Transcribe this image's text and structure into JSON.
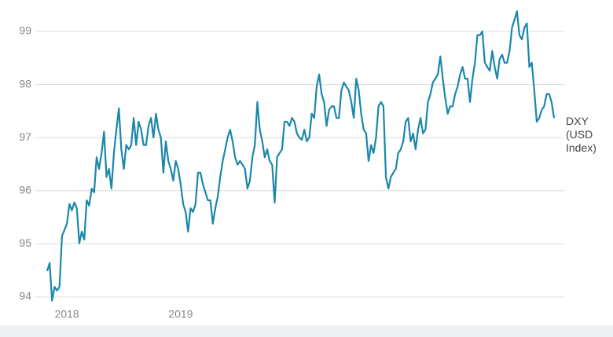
{
  "chart_data": {
    "type": "line",
    "categories": [
      null,
      null,
      null,
      null,
      null,
      null,
      null,
      null,
      "2018",
      null,
      null,
      null,
      null,
      null,
      null,
      null,
      null,
      null,
      null,
      null,
      null,
      null,
      null,
      null,
      null,
      null,
      null,
      null,
      null,
      null,
      null,
      null,
      null,
      null,
      null,
      null,
      null,
      null,
      null,
      null,
      null,
      null,
      null,
      null,
      null,
      null,
      null,
      null,
      null,
      null,
      null,
      null,
      null,
      null,
      "2019",
      null,
      null,
      null,
      null,
      null,
      null,
      null,
      null,
      null,
      null,
      null,
      null,
      null,
      null,
      null,
      null,
      null,
      null,
      null,
      null,
      null,
      null,
      null,
      null,
      null,
      null,
      null,
      null,
      null,
      null,
      null,
      null,
      null,
      null,
      null,
      null,
      null,
      null,
      null,
      null,
      null,
      null,
      null,
      null,
      null,
      null,
      null,
      null,
      null,
      null,
      null,
      null,
      null,
      null,
      null,
      null,
      null,
      null,
      null,
      null,
      null,
      null,
      null,
      null,
      null,
      null,
      null,
      null,
      null,
      null,
      null,
      null,
      null,
      null,
      null,
      null,
      null,
      null,
      null,
      null,
      null,
      null,
      null,
      null,
      null,
      null,
      null,
      null,
      null,
      null,
      null,
      null,
      null,
      null,
      null,
      null,
      null,
      null,
      null,
      null,
      null,
      null,
      null,
      null,
      null,
      null,
      null,
      null,
      null,
      null,
      null,
      null,
      null,
      null,
      null,
      null,
      null,
      null,
      null,
      null,
      null,
      null,
      null,
      null,
      null,
      null,
      null,
      null,
      null,
      null,
      null,
      null,
      null,
      null,
      null,
      null,
      null,
      null,
      null,
      null,
      null,
      null,
      null,
      null,
      null,
      null,
      null,
      null,
      null,
      null,
      null
    ],
    "series": [
      {
        "name": "DXY (USD Index)",
        "color": "#1a87ab",
        "values": [
          94.49,
          94.64,
          93.93,
          94.19,
          94.12,
          94.19,
          95.15,
          95.26,
          95.38,
          95.75,
          95.63,
          95.78,
          95.67,
          95.01,
          95.23,
          95.08,
          95.82,
          95.72,
          96.04,
          95.97,
          96.63,
          96.41,
          96.71,
          97.11,
          96.26,
          96.41,
          96.04,
          96.71,
          97.15,
          97.55,
          96.78,
          96.41,
          96.86,
          96.78,
          96.86,
          97.37,
          96.86,
          97.3,
          97.15,
          96.86,
          96.86,
          97.22,
          97.37,
          97.0,
          97.45,
          97.15,
          97.0,
          96.34,
          96.93,
          96.56,
          96.41,
          96.19,
          96.56,
          96.41,
          96.12,
          95.75,
          95.6,
          95.23,
          95.67,
          95.6,
          95.75,
          96.34,
          96.34,
          96.12,
          95.97,
          95.82,
          95.82,
          95.38,
          95.67,
          95.89,
          96.26,
          96.56,
          96.78,
          97.0,
          97.15,
          96.93,
          96.63,
          96.49,
          96.56,
          96.49,
          96.41,
          96.04,
          96.19,
          96.63,
          96.86,
          97.67,
          97.15,
          96.93,
          96.63,
          96.78,
          96.56,
          96.49,
          95.78,
          96.63,
          96.71,
          96.78,
          97.3,
          97.3,
          97.22,
          97.37,
          97.3,
          97.08,
          97.0,
          96.96,
          97.15,
          96.93,
          97.0,
          97.45,
          97.37,
          97.96,
          98.19,
          97.82,
          97.67,
          97.22,
          97.52,
          97.59,
          97.59,
          97.37,
          97.37,
          97.89,
          98.04,
          97.96,
          97.89,
          97.67,
          97.37,
          98.11,
          97.89,
          97.45,
          97.15,
          97.08,
          96.56,
          96.86,
          96.71,
          97.0,
          97.59,
          97.67,
          97.59,
          96.26,
          96.04,
          96.26,
          96.34,
          96.41,
          96.71,
          96.78,
          96.93,
          97.3,
          97.37,
          96.93,
          97.08,
          96.78,
          97.15,
          97.37,
          97.08,
          97.15,
          97.67,
          97.82,
          98.04,
          98.11,
          98.19,
          98.53,
          98.11,
          97.74,
          97.45,
          97.59,
          97.59,
          97.82,
          97.96,
          98.19,
          98.33,
          98.11,
          98.11,
          97.67,
          98.11,
          98.41,
          98.93,
          98.93,
          99.0,
          98.41,
          98.33,
          98.26,
          98.63,
          98.33,
          98.11,
          98.48,
          98.56,
          98.41,
          98.41,
          98.63,
          99.07,
          99.22,
          99.38,
          98.93,
          98.85,
          99.07,
          99.15,
          98.33,
          98.41,
          97.89,
          97.3,
          97.37,
          97.52,
          97.59,
          97.82,
          97.82,
          97.67,
          97.37
        ]
      }
    ],
    "ylim": [
      94,
      99
    ],
    "yticks": [
      94,
      95,
      96,
      97,
      98,
      99
    ],
    "grid": true
  }
}
